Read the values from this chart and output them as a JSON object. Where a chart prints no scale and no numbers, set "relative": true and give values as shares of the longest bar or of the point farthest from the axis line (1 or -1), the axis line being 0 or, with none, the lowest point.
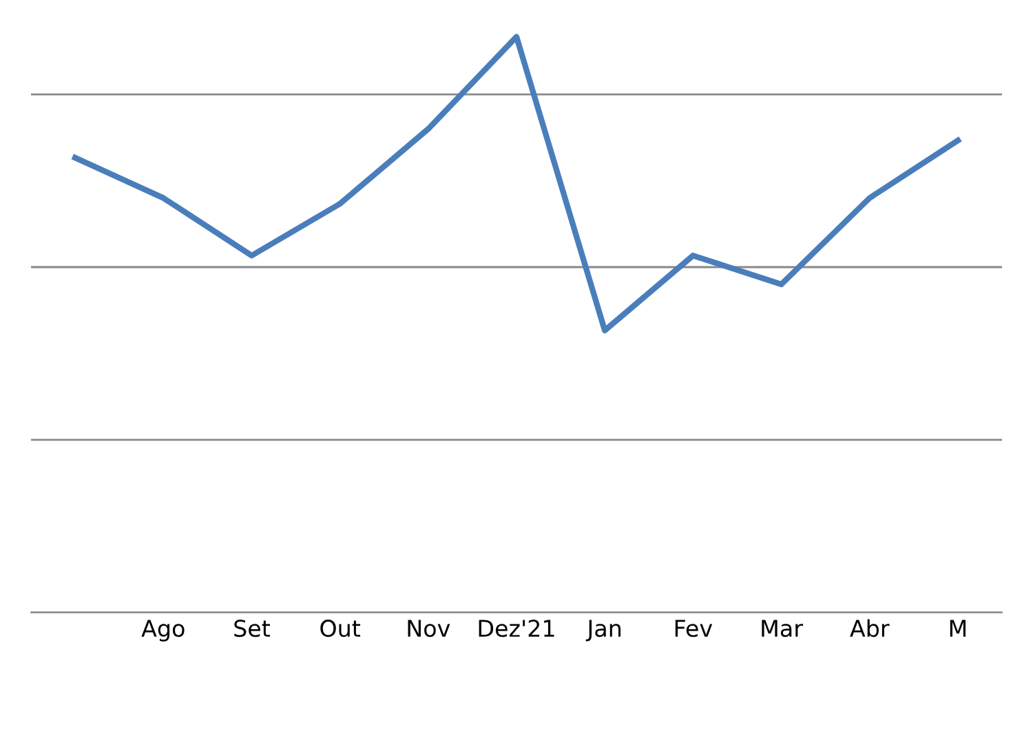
{
  "chart_data": {
    "type": "line",
    "relative": true,
    "categories": [
      null,
      "Ago",
      "Set",
      "Out",
      "Nov",
      "Dez'21",
      "Jan",
      "Fev",
      "Mar",
      "Abr",
      "M"
    ],
    "series": [
      {
        "color": "#4a7ebb",
        "values": [
          0.79,
          0.72,
          0.62,
          0.71,
          0.84,
          1,
          0.49,
          0.62,
          0.57,
          0.72,
          0.82
        ]
      }
    ],
    "grid": "y",
    "marker": "none",
    "line_style": "solid",
    "legend": false
  }
}
